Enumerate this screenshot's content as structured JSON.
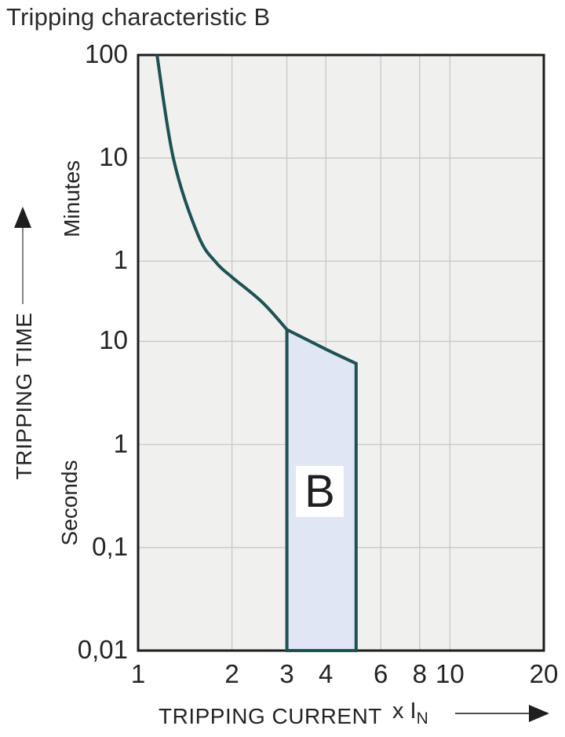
{
  "title": "Tripping characteristic B",
  "colors": {
    "curve": "#1e5154",
    "region_fill": "#e0e6f4",
    "plot_background": "#f0f0ee",
    "grid": "#c8c8c8",
    "border": "#1c1c1c",
    "text": "#242424"
  },
  "chart_data": {
    "type": "line",
    "title": "Tripping characteristic B",
    "x_axis": {
      "title": "TRIPPING CURRENT",
      "unit_prefix": "x I",
      "unit_sub": "N",
      "scale": "log",
      "range": [
        1,
        20
      ],
      "ticks": [
        {
          "v": 1,
          "label": "1"
        },
        {
          "v": 2,
          "label": "2"
        },
        {
          "v": 3,
          "label": "3"
        },
        {
          "v": 4,
          "label": "4"
        },
        {
          "v": 6,
          "label": "6"
        },
        {
          "v": 8,
          "label": "8"
        },
        {
          "v": 10,
          "label": "10"
        },
        {
          "v": 20,
          "label": "20"
        }
      ],
      "grid_at": [
        2,
        3,
        4,
        6,
        8,
        10
      ]
    },
    "y_axis": {
      "title": "TRIPPING TIME",
      "scale": "log",
      "range_seconds": [
        0.01,
        6000
      ],
      "sections": [
        {
          "name": "Minutes",
          "ticks": [
            {
              "v": 6000,
              "label": "100"
            },
            {
              "v": 600,
              "label": "10"
            },
            {
              "v": 60,
              "label": "1"
            }
          ]
        },
        {
          "name": "Seconds",
          "ticks": [
            {
              "v": 10,
              "label": "10"
            },
            {
              "v": 1,
              "label": "1"
            },
            {
              "v": 0.1,
              "label": "0,1"
            },
            {
              "v": 0.01,
              "label": "0,01"
            }
          ]
        }
      ],
      "grid_at_seconds": [
        600,
        60,
        10,
        1,
        0.1
      ]
    },
    "series": [
      {
        "name": "tripping-curve",
        "points": [
          [
            1.15,
            6000
          ],
          [
            1.3,
            580
          ],
          [
            1.56,
            106
          ],
          [
            1.78,
            58
          ],
          [
            2.0,
            42
          ],
          [
            2.5,
            24
          ],
          [
            3.0,
            13
          ]
        ]
      }
    ],
    "region": {
      "label": "B",
      "x_range": [
        3,
        5
      ],
      "top_boundary": [
        [
          3,
          13
        ],
        [
          4,
          8.4
        ],
        [
          5,
          6.1
        ]
      ],
      "bottom_seconds": 0.01
    }
  }
}
